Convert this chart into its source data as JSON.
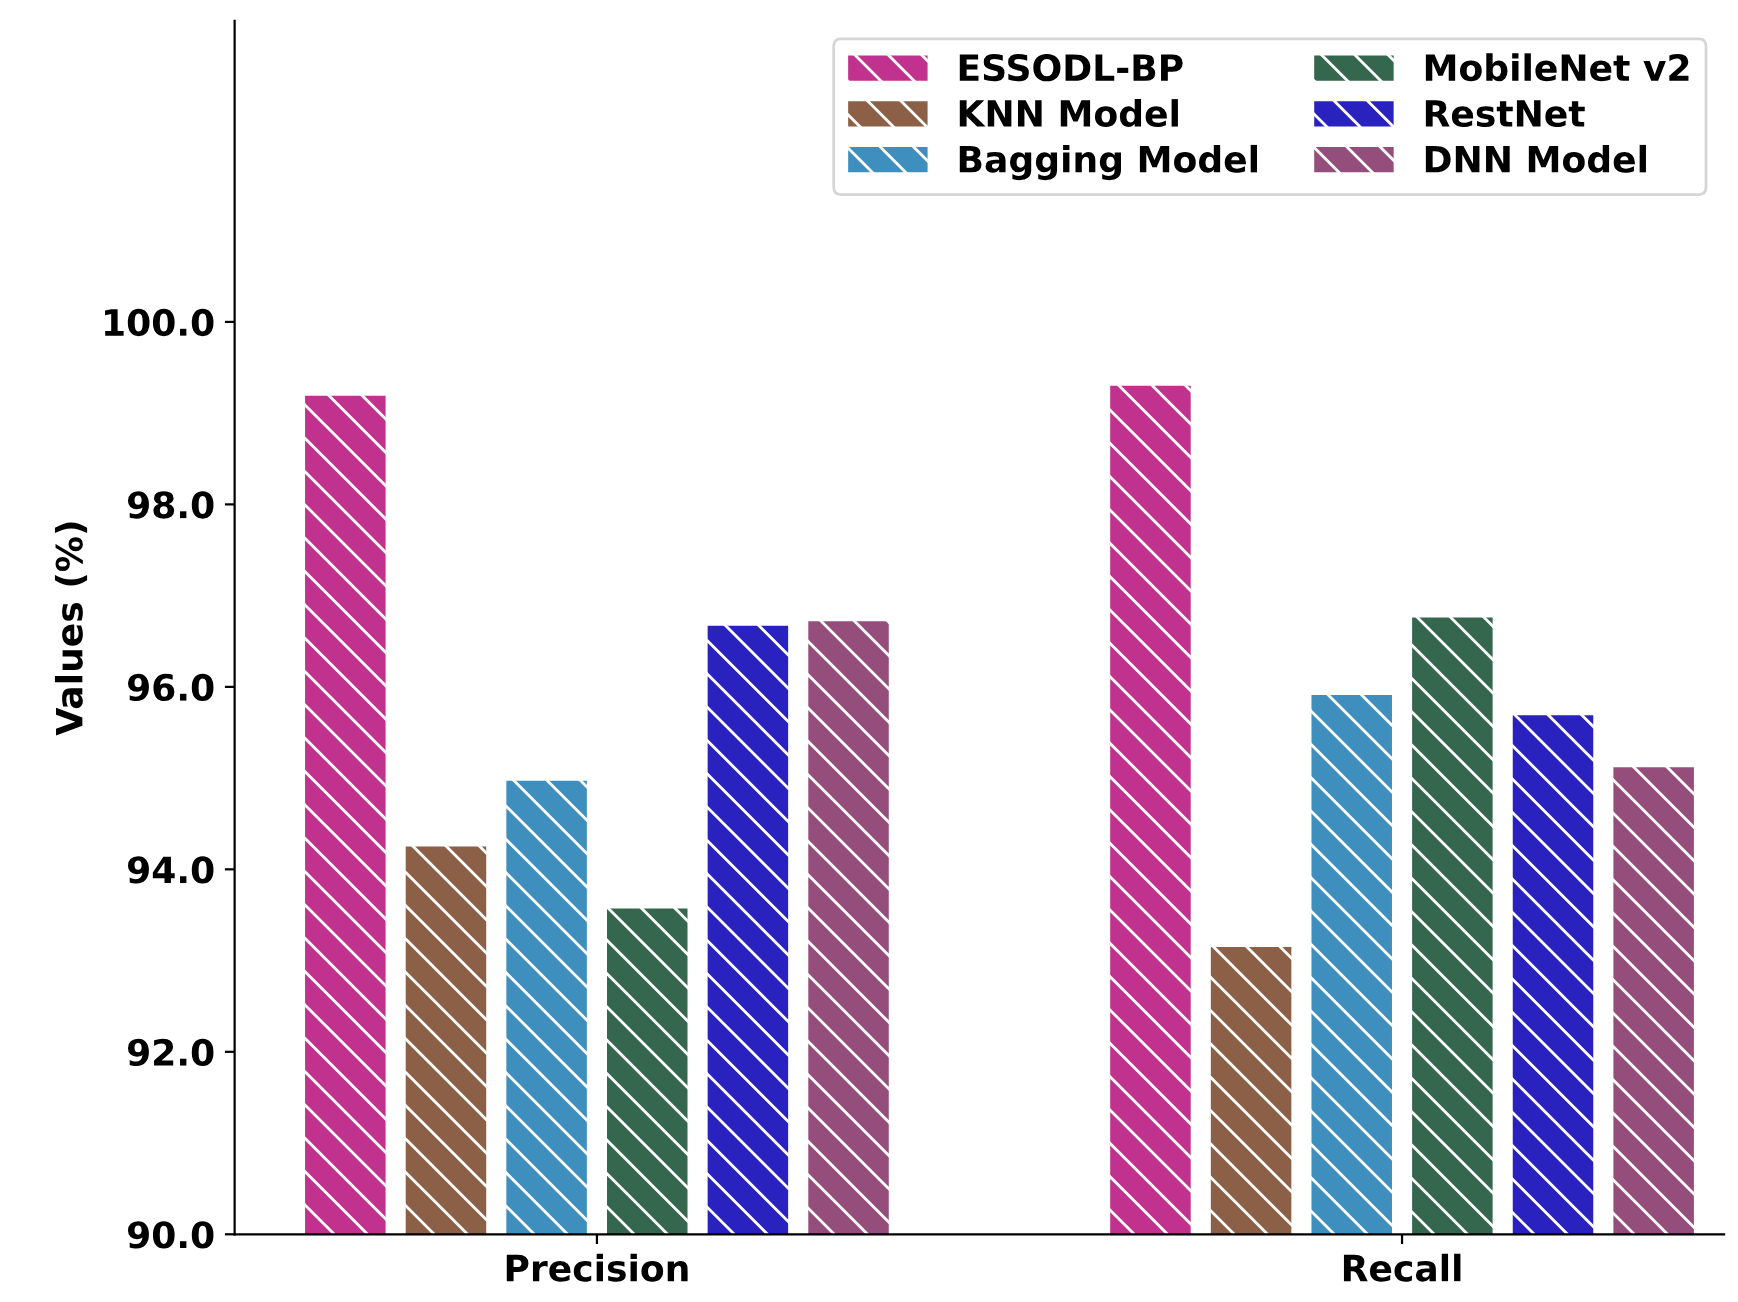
{
  "chart_data": {
    "type": "bar",
    "ylabel": "Values (%)",
    "categories": [
      "Precision",
      "Recall"
    ],
    "series": [
      {
        "name": "ESSODL-BP",
        "color": "#c1328e",
        "values": [
          99.19,
          99.3
        ]
      },
      {
        "name": "KNN Model",
        "color": "#8c6046",
        "values": [
          94.25,
          93.15
        ]
      },
      {
        "name": "Bagging Model",
        "color": "#3e8fbe",
        "values": [
          94.97,
          95.91
        ]
      },
      {
        "name": "MobileNet v2",
        "color": "#35664e",
        "values": [
          93.57,
          96.76
        ]
      },
      {
        "name": "RestNet",
        "color": "#2a22bf",
        "values": [
          96.67,
          95.69
        ]
      },
      {
        "name": "DNN Model",
        "color": "#954e7b",
        "values": [
          96.72,
          95.12
        ]
      }
    ],
    "ylim": [
      90,
      103.3
    ],
    "yticks": [
      {
        "value": 90,
        "label": "90.0"
      },
      {
        "value": 92,
        "label": "92.0"
      },
      {
        "value": 94,
        "label": "94.0"
      },
      {
        "value": 96,
        "label": "96.0"
      },
      {
        "value": 98,
        "label": "98.0"
      },
      {
        "value": 100,
        "label": "100.0"
      }
    ],
    "legend": "top right",
    "grid": false
  }
}
